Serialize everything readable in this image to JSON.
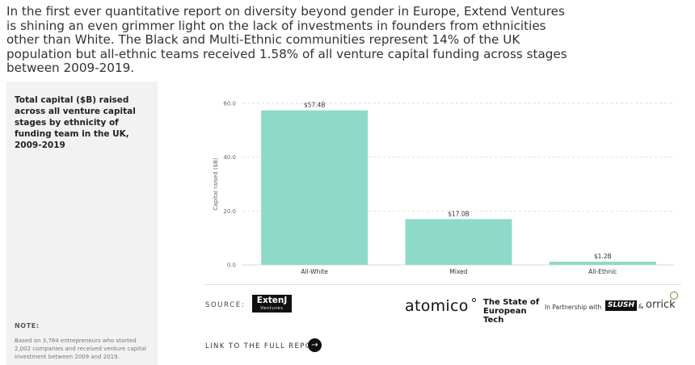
{
  "intro_text": "In the first ever quantitative report on diversity beyond gender in Europe, Extend Ventures is shining an even grimmer light on the lack of investments in founders from ethnicities other than White. The Black and Multi-Ethnic communities represent 14% of the UK population but all-ethnic teams received 1.58% of all venture capital funding across stages between 2009-2019.",
  "panel": {
    "title": "Total capital ($B) raised across all venture capital stages by ethnicity of funding team in the UK, 2009-2019",
    "note_label": "NOTE:",
    "note_text": "Based on 3,784 entrepreneurs who started 2,002 companies and received venture capital investment between 2009 and 2019."
  },
  "chart_data": {
    "type": "bar",
    "categories": [
      "All-White",
      "Mixed",
      "All-Ethnic"
    ],
    "values": [
      57.4,
      17.0,
      1.2
    ],
    "value_labels": [
      "$57.4B",
      "$17.0B",
      "$1.2B"
    ],
    "ylabel": "Capital raised ($B)",
    "ylim": [
      0,
      60
    ],
    "yticks": [
      0,
      20,
      40,
      60
    ],
    "ytick_labels": [
      "0.0",
      "20.0",
      "40.0",
      "60.0"
    ],
    "grid": true,
    "bar_color": "#8fd9c9",
    "grid_color": "#cfcfcf"
  },
  "footer": {
    "source_label": "SOURCE:",
    "extend_logo_line1": "ExtenJ",
    "extend_logo_line2": "Ventures",
    "atomico_logo": "atomico",
    "sote_line1": "The State of",
    "sote_line2": "European Tech",
    "partnership_text": "In Partnership with",
    "slush_logo": "SLUSH",
    "amp": "&",
    "orrick_logo": "orrick",
    "link_label": "LINK TO THE FULL REPORT",
    "link_arrow": "→"
  },
  "icons": {
    "link_arrow_icon": "arrow-right-icon"
  }
}
